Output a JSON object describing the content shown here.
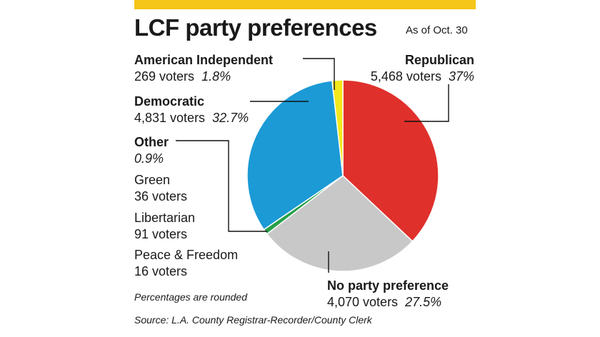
{
  "title": "LCF party preferences",
  "as_of": "As of Oct. 30",
  "note": "Percentages are rounded",
  "source": "Source: L.A. County Registrar-Recorder/County Clerk",
  "colors": {
    "accent": "#f5c518"
  },
  "chart_data": {
    "type": "pie",
    "title": "LCF party preferences",
    "slices": [
      {
        "label": "Republican",
        "voters": "5,468 voters",
        "pct_text": "37%",
        "value": 37.0,
        "color": "#e0302b"
      },
      {
        "label": "No party preference",
        "voters": "4,070 voters",
        "pct_text": "27.5%",
        "value": 27.5,
        "color": "#c8c8c8"
      },
      {
        "label": "Other",
        "pct_text": "0.9%",
        "value": 0.9,
        "color": "#27a04a"
      },
      {
        "label": "Democratic",
        "voters": "4,831 voters",
        "pct_text": "32.7%",
        "value": 32.7,
        "color": "#1b9ad6"
      },
      {
        "label": "American Independent",
        "voters": "269 voters",
        "pct_text": "1.8%",
        "value": 1.8,
        "color": "#f2e81c"
      }
    ],
    "other_breakdown": [
      {
        "label": "Green",
        "voters": "36 voters"
      },
      {
        "label": "Libertarian",
        "voters": "91 voters"
      },
      {
        "label": "Peace & Freedom",
        "voters": "16 voters"
      }
    ]
  }
}
